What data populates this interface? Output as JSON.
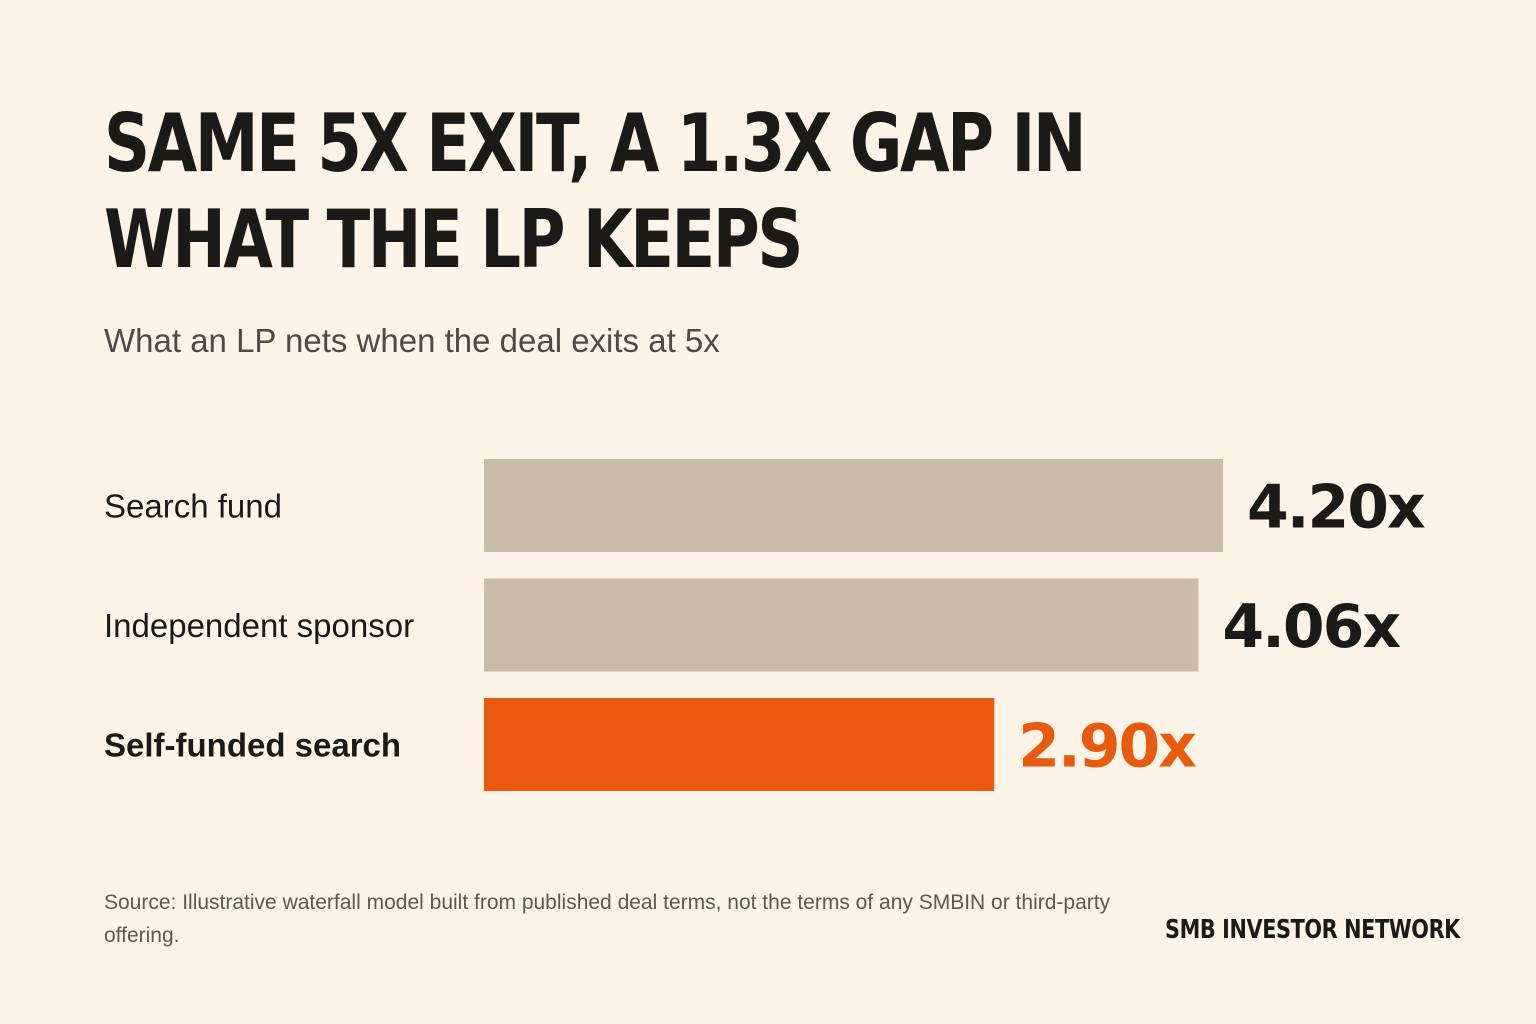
{
  "header": {
    "title": "SAME 5X EXIT, A 1.3X GAP IN WHAT THE LP KEEPS",
    "subtitle": "What an LP nets when the deal exits at 5x"
  },
  "chart_data": {
    "type": "bar",
    "orientation": "horizontal",
    "categories": [
      "Search fund",
      "Independent sponsor",
      "Self-funded search"
    ],
    "values": [
      4.2,
      4.06,
      2.9
    ],
    "value_labels": [
      "4.20x",
      "4.06x",
      "2.90x"
    ],
    "highlight_index": 2,
    "colors": {
      "default_bar": "#c9bcad",
      "highlight_bar": "#e85b0e",
      "default_value_text": "#1c1a17",
      "highlight_value_text": "#e85b0e"
    },
    "xlim": [
      0,
      4.2
    ],
    "grid": false,
    "legend": "none"
  },
  "footer": {
    "source": "Source: Illustrative waterfall model built from published deal terms, not the terms of any SMBIN or third-party offering.",
    "brand": "SMB INVESTOR NETWORK"
  }
}
